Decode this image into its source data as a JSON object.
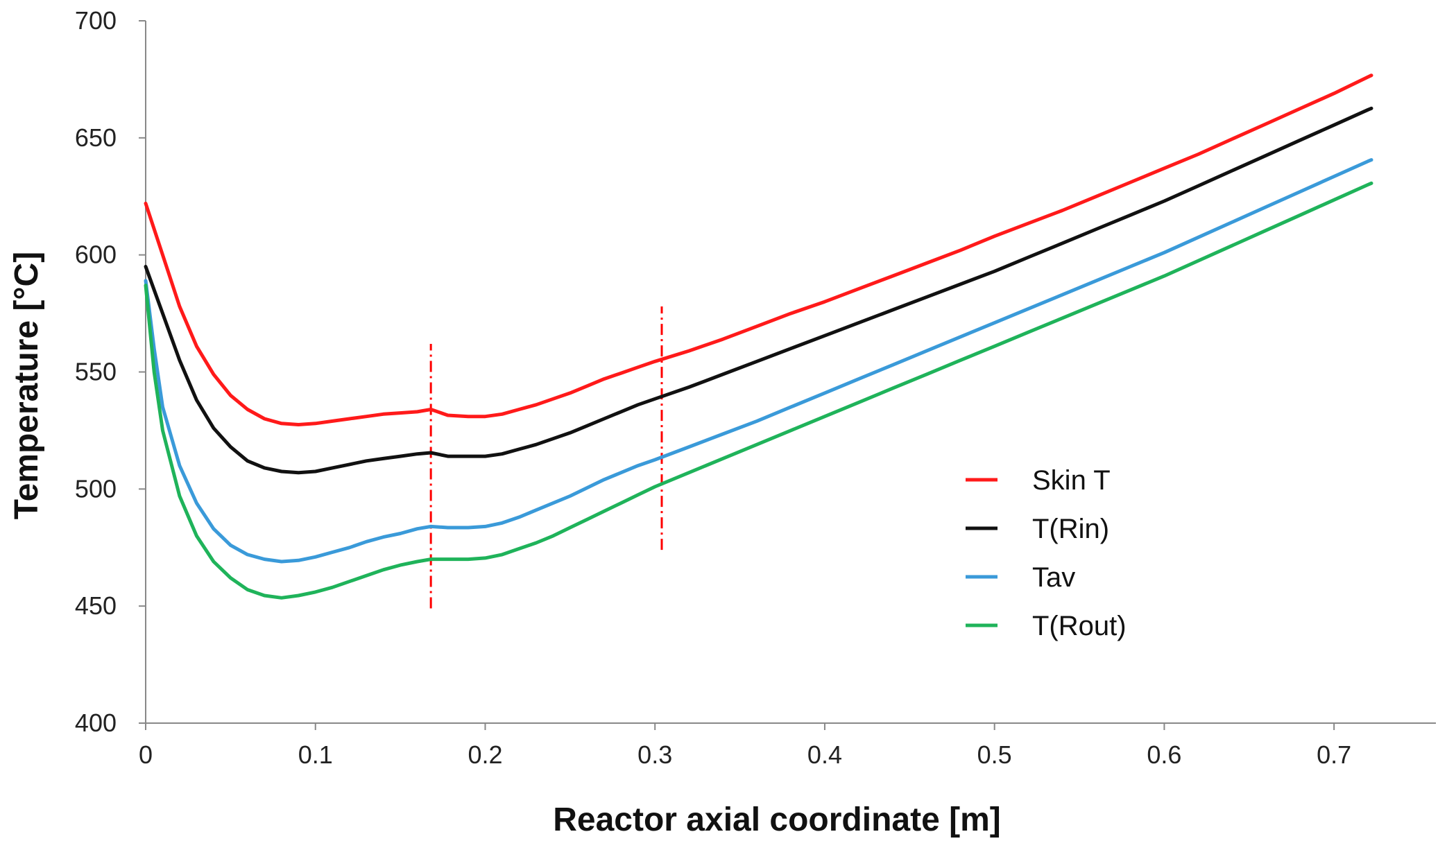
{
  "chart_data": {
    "type": "line",
    "xlabel": "Reactor axial coordinate [m]",
    "ylabel": "Temperature [°C]",
    "xlim": [
      0,
      0.76
    ],
    "ylim": [
      400,
      700
    ],
    "x_ticks": [
      "0",
      "0.1",
      "0.2",
      "0.3",
      "0.4",
      "0.5",
      "0.6",
      "0.7"
    ],
    "y_ticks": [
      "400",
      "450",
      "500",
      "550",
      "600",
      "650",
      "700"
    ],
    "grid": false,
    "legend_position": "right",
    "reference_lines": [
      {
        "x": 0.168,
        "y_range": [
          449,
          562
        ],
        "color": "#ff0000",
        "style": "dash-dot"
      },
      {
        "x": 0.304,
        "y_range": [
          474,
          578
        ],
        "color": "#ff0000",
        "style": "dash-dot"
      }
    ],
    "series": [
      {
        "name": "Skin T",
        "color": "#ff1a1a",
        "points": [
          [
            0,
            622
          ],
          [
            0.01,
            600
          ],
          [
            0.02,
            578
          ],
          [
            0.03,
            561
          ],
          [
            0.04,
            549
          ],
          [
            0.05,
            540
          ],
          [
            0.06,
            534
          ],
          [
            0.07,
            530
          ],
          [
            0.08,
            528
          ],
          [
            0.09,
            527.5
          ],
          [
            0.1,
            528
          ],
          [
            0.11,
            529
          ],
          [
            0.12,
            530
          ],
          [
            0.13,
            531
          ],
          [
            0.14,
            532
          ],
          [
            0.15,
            532.5
          ],
          [
            0.16,
            533
          ],
          [
            0.168,
            534
          ],
          [
            0.178,
            531.5
          ],
          [
            0.19,
            531
          ],
          [
            0.2,
            531
          ],
          [
            0.21,
            532
          ],
          [
            0.22,
            534
          ],
          [
            0.23,
            536
          ],
          [
            0.24,
            538.5
          ],
          [
            0.25,
            541
          ],
          [
            0.26,
            544
          ],
          [
            0.27,
            547
          ],
          [
            0.28,
            549.5
          ],
          [
            0.29,
            552
          ],
          [
            0.3,
            554.5
          ],
          [
            0.32,
            559
          ],
          [
            0.34,
            564
          ],
          [
            0.36,
            569.5
          ],
          [
            0.38,
            575
          ],
          [
            0.4,
            580
          ],
          [
            0.42,
            585.5
          ],
          [
            0.44,
            591
          ],
          [
            0.46,
            596.5
          ],
          [
            0.48,
            602
          ],
          [
            0.5,
            608
          ],
          [
            0.52,
            613.5
          ],
          [
            0.54,
            619
          ],
          [
            0.56,
            625
          ],
          [
            0.58,
            631
          ],
          [
            0.6,
            637
          ],
          [
            0.62,
            643
          ],
          [
            0.64,
            649.5
          ],
          [
            0.66,
            656
          ],
          [
            0.68,
            662.5
          ],
          [
            0.7,
            669
          ],
          [
            0.72,
            676
          ],
          [
            0.74,
            683
          ]
        ]
      },
      {
        "name": "T(Rin)",
        "color": "#111111",
        "points": [
          [
            0,
            595
          ],
          [
            0.01,
            575
          ],
          [
            0.02,
            555
          ],
          [
            0.03,
            538
          ],
          [
            0.04,
            526
          ],
          [
            0.05,
            518
          ],
          [
            0.06,
            512
          ],
          [
            0.07,
            509
          ],
          [
            0.08,
            507.5
          ],
          [
            0.09,
            507
          ],
          [
            0.1,
            507.5
          ],
          [
            0.11,
            509
          ],
          [
            0.12,
            510.5
          ],
          [
            0.13,
            512
          ],
          [
            0.14,
            513
          ],
          [
            0.15,
            514
          ],
          [
            0.16,
            515
          ],
          [
            0.168,
            515.5
          ],
          [
            0.178,
            514
          ],
          [
            0.19,
            514
          ],
          [
            0.2,
            514
          ],
          [
            0.21,
            515
          ],
          [
            0.22,
            517
          ],
          [
            0.23,
            519
          ],
          [
            0.24,
            521.5
          ],
          [
            0.25,
            524
          ],
          [
            0.26,
            527
          ],
          [
            0.27,
            530
          ],
          [
            0.28,
            533
          ],
          [
            0.29,
            536
          ],
          [
            0.3,
            538.5
          ],
          [
            0.32,
            543.5
          ],
          [
            0.34,
            549
          ],
          [
            0.36,
            554.5
          ],
          [
            0.38,
            560
          ],
          [
            0.4,
            565.5
          ],
          [
            0.42,
            571
          ],
          [
            0.44,
            576.5
          ],
          [
            0.46,
            582
          ],
          [
            0.48,
            587.5
          ],
          [
            0.5,
            593
          ],
          [
            0.52,
            599
          ],
          [
            0.54,
            605
          ],
          [
            0.56,
            611
          ],
          [
            0.58,
            617
          ],
          [
            0.6,
            623
          ],
          [
            0.62,
            629.5
          ],
          [
            0.64,
            636
          ],
          [
            0.66,
            642.5
          ],
          [
            0.68,
            649
          ],
          [
            0.7,
            655.5
          ],
          [
            0.72,
            662
          ],
          [
            0.74,
            668
          ]
        ]
      },
      {
        "name": "Tav",
        "color": "#3a9ad9",
        "points": [
          [
            0,
            589
          ],
          [
            0.005,
            560
          ],
          [
            0.01,
            535
          ],
          [
            0.02,
            510
          ],
          [
            0.03,
            494
          ],
          [
            0.04,
            483
          ],
          [
            0.05,
            476
          ],
          [
            0.06,
            472
          ],
          [
            0.07,
            470
          ],
          [
            0.08,
            469
          ],
          [
            0.09,
            469.5
          ],
          [
            0.1,
            471
          ],
          [
            0.11,
            473
          ],
          [
            0.12,
            475
          ],
          [
            0.13,
            477.5
          ],
          [
            0.14,
            479.5
          ],
          [
            0.15,
            481
          ],
          [
            0.16,
            483
          ],
          [
            0.168,
            484
          ],
          [
            0.178,
            483.5
          ],
          [
            0.19,
            483.5
          ],
          [
            0.2,
            484
          ],
          [
            0.21,
            485.5
          ],
          [
            0.22,
            488
          ],
          [
            0.23,
            491
          ],
          [
            0.24,
            494
          ],
          [
            0.25,
            497
          ],
          [
            0.26,
            500.5
          ],
          [
            0.27,
            504
          ],
          [
            0.28,
            507
          ],
          [
            0.29,
            510
          ],
          [
            0.3,
            512.5
          ],
          [
            0.32,
            518
          ],
          [
            0.34,
            523.5
          ],
          [
            0.36,
            529
          ],
          [
            0.38,
            535
          ],
          [
            0.4,
            541
          ],
          [
            0.42,
            547
          ],
          [
            0.44,
            553
          ],
          [
            0.46,
            559
          ],
          [
            0.48,
            565
          ],
          [
            0.5,
            571
          ],
          [
            0.52,
            577
          ],
          [
            0.54,
            583
          ],
          [
            0.56,
            589
          ],
          [
            0.58,
            595
          ],
          [
            0.6,
            601
          ],
          [
            0.62,
            607.5
          ],
          [
            0.64,
            614
          ],
          [
            0.66,
            620.5
          ],
          [
            0.68,
            627
          ],
          [
            0.7,
            633.5
          ],
          [
            0.72,
            640
          ],
          [
            0.74,
            646
          ]
        ]
      },
      {
        "name": "T(Rout)",
        "color": "#1fb35a",
        "points": [
          [
            0,
            587
          ],
          [
            0.005,
            550
          ],
          [
            0.01,
            525
          ],
          [
            0.02,
            497
          ],
          [
            0.03,
            480
          ],
          [
            0.04,
            469
          ],
          [
            0.05,
            462
          ],
          [
            0.06,
            457
          ],
          [
            0.07,
            454.5
          ],
          [
            0.08,
            453.5
          ],
          [
            0.09,
            454.5
          ],
          [
            0.1,
            456
          ],
          [
            0.11,
            458
          ],
          [
            0.12,
            460.5
          ],
          [
            0.13,
            463
          ],
          [
            0.14,
            465.5
          ],
          [
            0.15,
            467.5
          ],
          [
            0.16,
            469
          ],
          [
            0.168,
            470
          ],
          [
            0.178,
            470
          ],
          [
            0.19,
            470
          ],
          [
            0.2,
            470.5
          ],
          [
            0.21,
            472
          ],
          [
            0.22,
            474.5
          ],
          [
            0.23,
            477
          ],
          [
            0.24,
            480
          ],
          [
            0.25,
            483.5
          ],
          [
            0.26,
            487
          ],
          [
            0.27,
            490.5
          ],
          [
            0.28,
            494
          ],
          [
            0.29,
            497.5
          ],
          [
            0.3,
            501
          ],
          [
            0.32,
            507
          ],
          [
            0.34,
            513
          ],
          [
            0.36,
            519
          ],
          [
            0.38,
            525
          ],
          [
            0.4,
            531
          ],
          [
            0.42,
            537
          ],
          [
            0.44,
            543
          ],
          [
            0.46,
            549
          ],
          [
            0.48,
            555
          ],
          [
            0.5,
            561
          ],
          [
            0.52,
            567
          ],
          [
            0.54,
            573
          ],
          [
            0.56,
            579
          ],
          [
            0.58,
            585
          ],
          [
            0.6,
            591
          ],
          [
            0.62,
            597.5
          ],
          [
            0.64,
            604
          ],
          [
            0.66,
            610.5
          ],
          [
            0.68,
            617
          ],
          [
            0.7,
            623.5
          ],
          [
            0.72,
            630
          ],
          [
            0.74,
            636
          ]
        ]
      }
    ]
  }
}
